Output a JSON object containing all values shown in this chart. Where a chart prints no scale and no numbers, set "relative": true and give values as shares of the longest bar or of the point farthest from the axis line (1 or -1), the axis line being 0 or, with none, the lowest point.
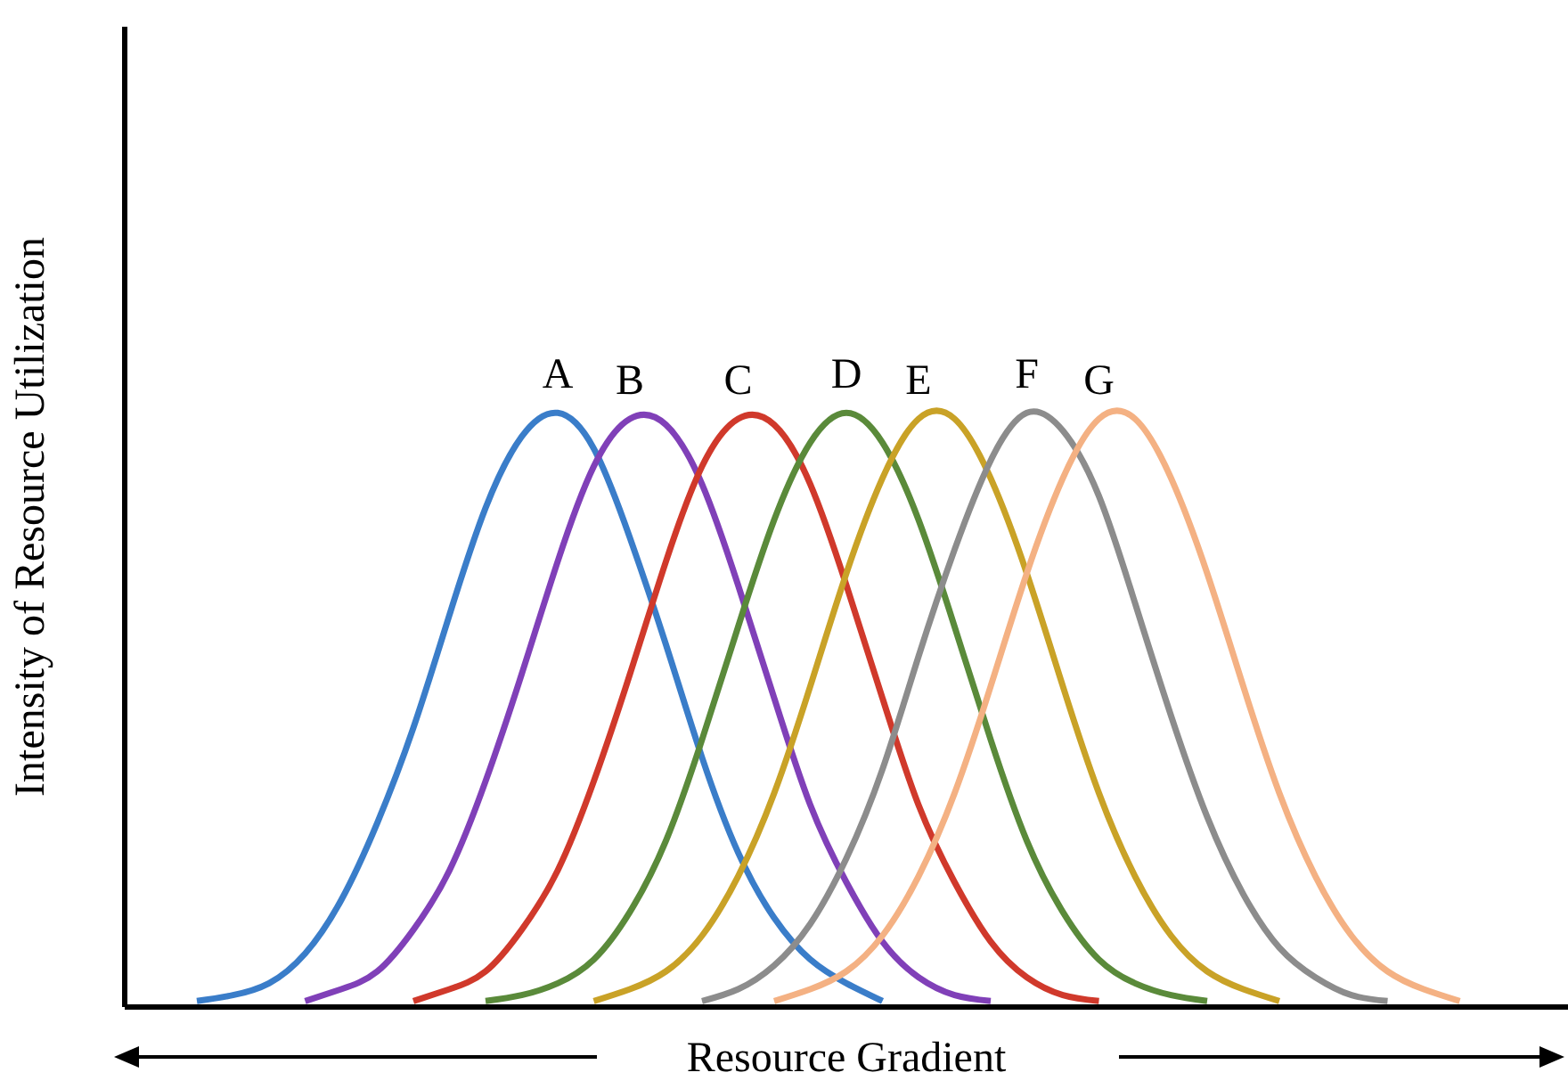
{
  "chart_data": {
    "type": "line",
    "relative": true,
    "xlabel": "Resource Gradient",
    "ylabel": "Intensity of Resource Utilization",
    "line_style": "solid",
    "categories": [
      null,
      null,
      null,
      null,
      null,
      null,
      null,
      null,
      null,
      null,
      null,
      null,
      null,
      null,
      null,
      null,
      null,
      null,
      null,
      null,
      null,
      null,
      null,
      null,
      null,
      null,
      null,
      null,
      null,
      null,
      null,
      null,
      null,
      null,
      null,
      null,
      null,
      null,
      null,
      null,
      null
    ],
    "series": [
      {
        "name": "A",
        "color": "#3a7dc9",
        "values": [
          null,
          null,
          0.01,
          0.02,
          0.04,
          0.09,
          0.18,
          0.31,
          0.47,
          0.66,
          0.84,
          0.96,
          1,
          0.94,
          0.79,
          0.61,
          0.42,
          0.26,
          0.15,
          0.08,
          0.04,
          0.01,
          null,
          null,
          null,
          null,
          null,
          null,
          null,
          null,
          null,
          null,
          null,
          null,
          null,
          null,
          null,
          null,
          null,
          null,
          null
        ]
      },
      {
        "name": "B",
        "color": "#8040b8",
        "values": [
          null,
          null,
          null,
          null,
          null,
          0.01,
          0.03,
          0.06,
          0.13,
          0.23,
          0.38,
          0.56,
          0.75,
          0.91,
          0.99,
          0.98,
          0.88,
          0.71,
          0.52,
          0.34,
          0.21,
          0.11,
          0.05,
          0.02,
          0.01,
          null,
          null,
          null,
          null,
          null,
          null,
          null,
          null,
          null,
          null,
          null,
          null,
          null,
          null,
          null,
          null
        ]
      },
      {
        "name": "C",
        "color": "#d0392b",
        "values": [
          null,
          null,
          null,
          null,
          null,
          null,
          null,
          null,
          0.01,
          0.03,
          0.06,
          0.13,
          0.23,
          0.38,
          0.56,
          0.75,
          0.91,
          0.99,
          0.98,
          0.88,
          0.71,
          0.52,
          0.34,
          0.21,
          0.11,
          0.05,
          0.02,
          0.01,
          null,
          null,
          null,
          null,
          null,
          null,
          null,
          null,
          null,
          null,
          null,
          null,
          null
        ]
      },
      {
        "name": "D",
        "color": "#5a8a3a",
        "values": [
          null,
          null,
          null,
          null,
          null,
          null,
          null,
          null,
          null,
          null,
          0.01,
          0.02,
          0.04,
          0.08,
          0.16,
          0.28,
          0.45,
          0.64,
          0.82,
          0.95,
          1,
          0.95,
          0.82,
          0.64,
          0.45,
          0.28,
          0.16,
          0.08,
          0.04,
          0.02,
          0.01,
          null,
          null,
          null,
          null,
          null,
          null,
          null,
          null,
          null,
          null
        ]
      },
      {
        "name": "E",
        "color": "#c9a227",
        "values": [
          null,
          null,
          null,
          null,
          null,
          null,
          null,
          null,
          null,
          null,
          null,
          null,
          null,
          0.01,
          0.03,
          0.06,
          0.12,
          0.22,
          0.36,
          0.54,
          0.73,
          0.89,
          0.99,
          0.99,
          0.89,
          0.73,
          0.54,
          0.36,
          0.22,
          0.12,
          0.06,
          0.03,
          0.01,
          null,
          null,
          null,
          null,
          null,
          null,
          null,
          null
        ]
      },
      {
        "name": "F",
        "color": "#8c8c8c",
        "values": [
          null,
          null,
          null,
          null,
          null,
          null,
          null,
          null,
          null,
          null,
          null,
          null,
          null,
          null,
          null,
          null,
          0.01,
          0.03,
          0.07,
          0.14,
          0.25,
          0.4,
          0.59,
          0.77,
          0.92,
          1,
          0.97,
          0.86,
          0.68,
          0.49,
          0.32,
          0.19,
          0.1,
          0.05,
          0.02,
          0.01,
          null,
          null,
          null,
          null,
          null
        ]
      },
      {
        "name": "G",
        "color": "#f4b183",
        "values": [
          null,
          null,
          null,
          null,
          null,
          null,
          null,
          null,
          null,
          null,
          null,
          null,
          null,
          null,
          null,
          null,
          null,
          null,
          0.01,
          0.03,
          0.06,
          0.12,
          0.22,
          0.36,
          0.54,
          0.73,
          0.89,
          0.99,
          0.99,
          0.89,
          0.73,
          0.54,
          0.36,
          0.22,
          0.12,
          0.06,
          0.03,
          0.01,
          null,
          null,
          null
        ]
      }
    ]
  }
}
